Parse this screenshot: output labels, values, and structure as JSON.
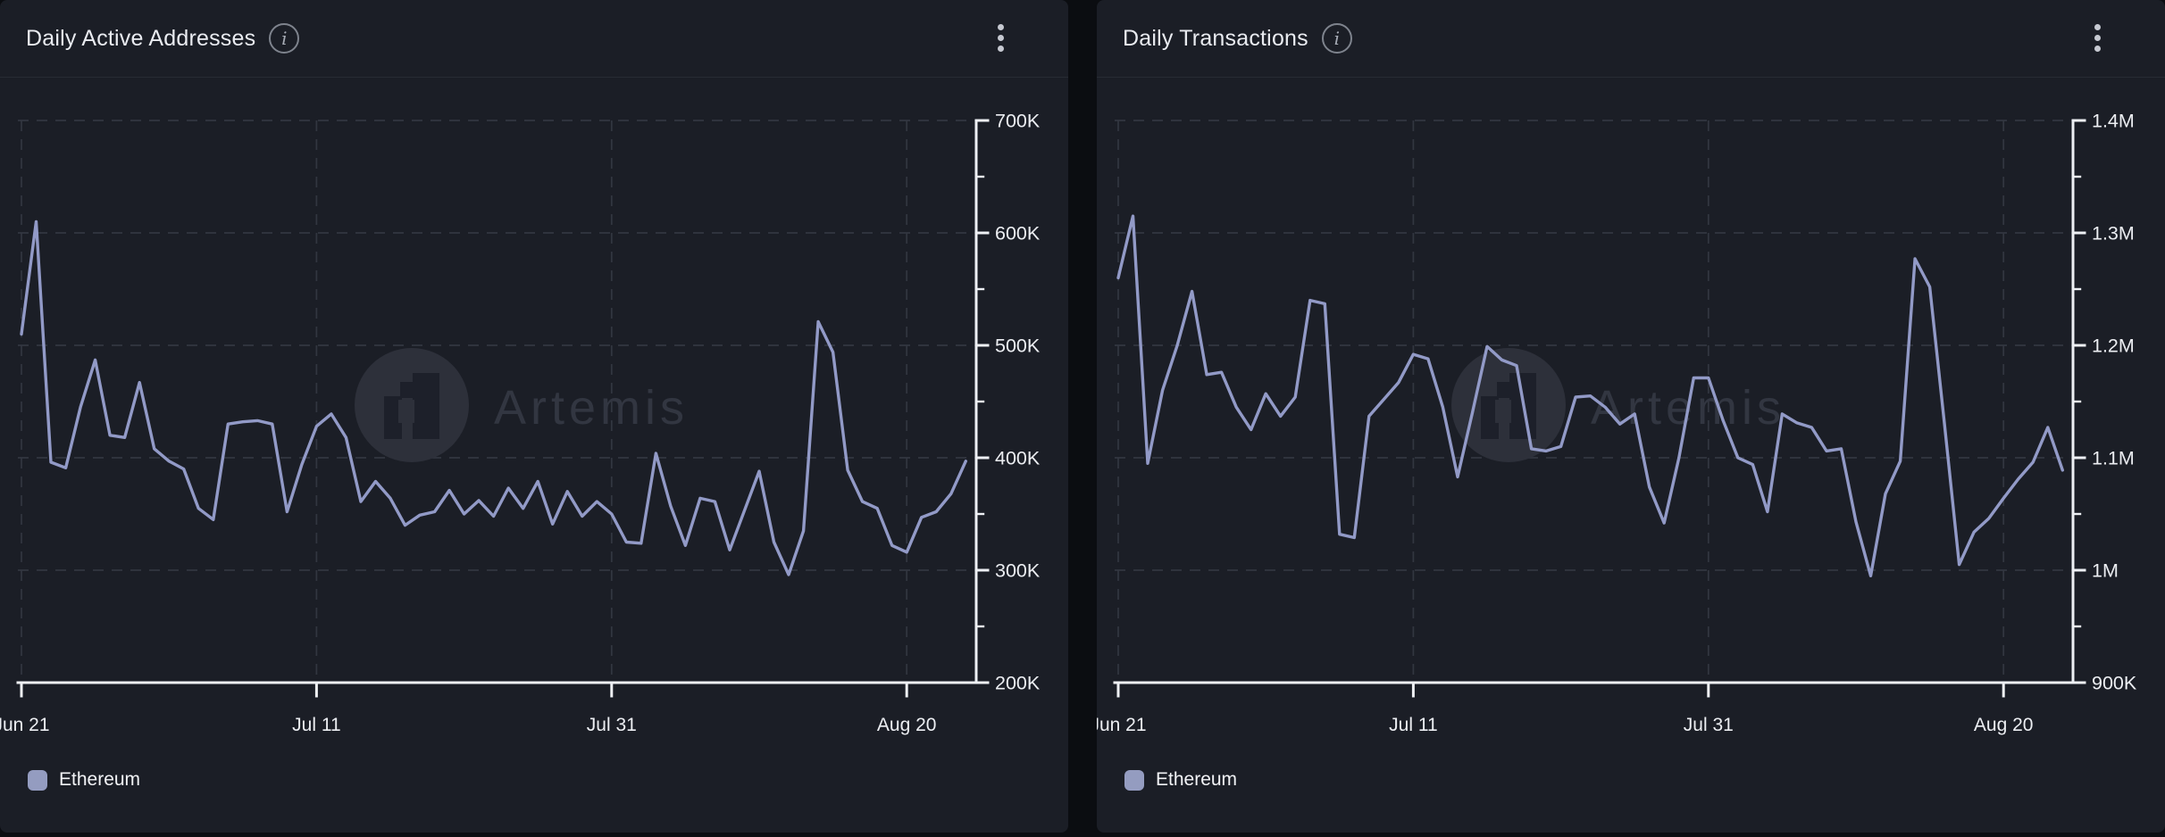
{
  "colors": {
    "page_bg": "#0b0d11",
    "panel_bg": "#1b1e26",
    "header_border": "#272b34",
    "title_text": "#e9ebf0",
    "grid_line": "#464b57",
    "axis_line": "#eef0f4",
    "tick_text": "#eceef2",
    "series_line": "#929ac7",
    "legend_swatch": "#949cc0",
    "watermark_circle": "#2d303a",
    "watermark_glyph": "#1d202a",
    "watermark_text": "#323641"
  },
  "panels": [
    {
      "title": "Daily Active Addresses",
      "info_icon_glyph": "i",
      "legend": {
        "label": "Ethereum"
      }
    },
    {
      "title": "Daily Transactions",
      "info_icon_glyph": "i",
      "legend": {
        "label": "Ethereum"
      }
    }
  ],
  "watermark_text": "Artemis",
  "chart_data": [
    {
      "type": "line",
      "title": "Daily Active Addresses",
      "xlabel": "",
      "ylabel": "",
      "unit": "thousands",
      "ylim": [
        200,
        700
      ],
      "grid": "dashed",
      "legend_position": "bottom-left",
      "legend": [
        "Ethereum"
      ],
      "x": [
        "Jun 21",
        "Jun 22",
        "Jun 23",
        "Jun 24",
        "Jun 25",
        "Jun 26",
        "Jun 27",
        "Jun 28",
        "Jun 29",
        "Jun 30",
        "Jul 1",
        "Jul 2",
        "Jul 3",
        "Jul 4",
        "Jul 5",
        "Jul 6",
        "Jul 7",
        "Jul 8",
        "Jul 9",
        "Jul 10",
        "Jul 11",
        "Jul 12",
        "Jul 13",
        "Jul 14",
        "Jul 15",
        "Jul 16",
        "Jul 17",
        "Jul 18",
        "Jul 19",
        "Jul 20",
        "Jul 21",
        "Jul 22",
        "Jul 23",
        "Jul 24",
        "Jul 25",
        "Jul 26",
        "Jul 27",
        "Jul 28",
        "Jul 29",
        "Jul 30",
        "Jul 31",
        "Aug 1",
        "Aug 2",
        "Aug 3",
        "Aug 4",
        "Aug 5",
        "Aug 6",
        "Aug 7",
        "Aug 8",
        "Aug 9",
        "Aug 10",
        "Aug 11",
        "Aug 12",
        "Aug 13",
        "Aug 14",
        "Aug 15",
        "Aug 16",
        "Aug 17",
        "Aug 18",
        "Aug 19",
        "Aug 20",
        "Aug 21",
        "Aug 22",
        "Aug 23",
        "Aug 24"
      ],
      "x_ticks": [
        {
          "label": "Jun 21",
          "index": 0
        },
        {
          "label": "Jul 11",
          "index": 20
        },
        {
          "label": "Jul 31",
          "index": 40
        },
        {
          "label": "Aug 20",
          "index": 60
        }
      ],
      "y_ticks": [
        {
          "label": "700K",
          "value": 700
        },
        {
          "label": "600K",
          "value": 600
        },
        {
          "label": "500K",
          "value": 500
        },
        {
          "label": "400K",
          "value": 400
        },
        {
          "label": "300K",
          "value": 300
        },
        {
          "label": "200K",
          "value": 200
        }
      ],
      "series": [
        {
          "name": "Ethereum",
          "color": "#929ac7",
          "values": [
            510,
            610,
            396,
            391,
            445,
            487,
            420,
            418,
            467,
            408,
            397,
            390,
            355,
            345,
            430,
            432,
            433,
            430,
            352,
            394,
            428,
            439,
            418,
            361,
            379,
            364,
            340,
            349,
            352,
            371,
            350,
            362,
            348,
            373,
            355,
            379,
            341,
            370,
            348,
            361,
            350,
            325,
            324,
            404,
            357,
            322,
            364,
            361,
            318,
            353,
            388,
            325,
            296,
            335,
            521,
            494,
            389,
            361,
            355,
            322,
            316,
            347,
            352,
            368,
            397
          ]
        }
      ]
    },
    {
      "type": "line",
      "title": "Daily Transactions",
      "xlabel": "",
      "ylabel": "",
      "unit": "millions",
      "ylim": [
        0.9,
        1.4
      ],
      "grid": "dashed",
      "legend_position": "bottom-left",
      "legend": [
        "Ethereum"
      ],
      "x": [
        "Jun 21",
        "Jun 22",
        "Jun 23",
        "Jun 24",
        "Jun 25",
        "Jun 26",
        "Jun 27",
        "Jun 28",
        "Jun 29",
        "Jun 30",
        "Jul 1",
        "Jul 2",
        "Jul 3",
        "Jul 4",
        "Jul 5",
        "Jul 6",
        "Jul 7",
        "Jul 8",
        "Jul 9",
        "Jul 10",
        "Jul 11",
        "Jul 12",
        "Jul 13",
        "Jul 14",
        "Jul 15",
        "Jul 16",
        "Jul 17",
        "Jul 18",
        "Jul 19",
        "Jul 20",
        "Jul 21",
        "Jul 22",
        "Jul 23",
        "Jul 24",
        "Jul 25",
        "Jul 26",
        "Jul 27",
        "Jul 28",
        "Jul 29",
        "Jul 30",
        "Jul 31",
        "Aug 1",
        "Aug 2",
        "Aug 3",
        "Aug 4",
        "Aug 5",
        "Aug 6",
        "Aug 7",
        "Aug 8",
        "Aug 9",
        "Aug 10",
        "Aug 11",
        "Aug 12",
        "Aug 13",
        "Aug 14",
        "Aug 15",
        "Aug 16",
        "Aug 17",
        "Aug 18",
        "Aug 19",
        "Aug 20",
        "Aug 21",
        "Aug 22",
        "Aug 23",
        "Aug 24"
      ],
      "x_ticks": [
        {
          "label": "Jun 21",
          "index": 0
        },
        {
          "label": "Jul 11",
          "index": 20
        },
        {
          "label": "Jul 31",
          "index": 40
        },
        {
          "label": "Aug 20",
          "index": 60
        }
      ],
      "y_ticks": [
        {
          "label": "1.4M",
          "value": 1.4
        },
        {
          "label": "1.3M",
          "value": 1.3
        },
        {
          "label": "1.2M",
          "value": 1.2
        },
        {
          "label": "1.1M",
          "value": 1.1
        },
        {
          "label": "1M",
          "value": 1.0
        },
        {
          "label": "900K",
          "value": 0.9
        }
      ],
      "series": [
        {
          "name": "Ethereum",
          "color": "#929ac7",
          "values": [
            1.26,
            1.315,
            1.095,
            1.16,
            1.2,
            1.248,
            1.174,
            1.176,
            1.145,
            1.125,
            1.157,
            1.137,
            1.154,
            1.24,
            1.237,
            1.032,
            1.029,
            1.137,
            1.152,
            1.167,
            1.192,
            1.188,
            1.145,
            1.083,
            1.14,
            1.199,
            1.187,
            1.182,
            1.108,
            1.106,
            1.11,
            1.154,
            1.155,
            1.145,
            1.13,
            1.139,
            1.074,
            1.042,
            1.1,
            1.171,
            1.171,
            1.133,
            1.1,
            1.094,
            1.052,
            1.139,
            1.131,
            1.127,
            1.106,
            1.108,
            1.043,
            0.995,
            1.068,
            1.097,
            1.277,
            1.252,
            1.13,
            1.005,
            1.034,
            1.046,
            1.064,
            1.081,
            1.096,
            1.127,
            1.089
          ]
        }
      ]
    }
  ]
}
